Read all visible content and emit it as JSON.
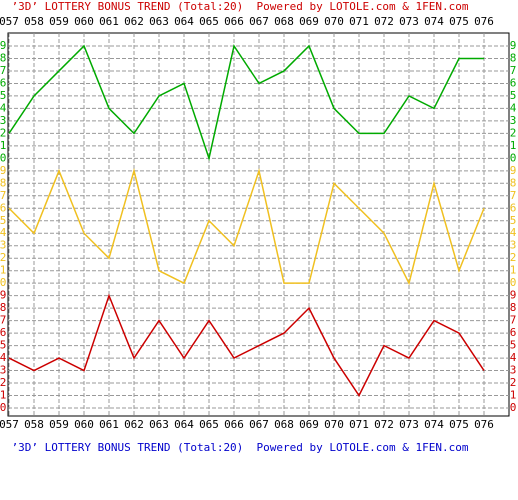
{
  "chart_data": {
    "type": "line",
    "title": "’3D’ LOTTERY BONUS TREND (Total:20)  Powered by LOTOLE.com & 1FEN.com",
    "categories": [
      "057",
      "058",
      "059",
      "060",
      "061",
      "062",
      "063",
      "064",
      "065",
      "066",
      "067",
      "068",
      "069",
      "070",
      "071",
      "072",
      "073",
      "074",
      "075",
      "076"
    ],
    "ylim": [
      0,
      9
    ],
    "yticks": [
      0,
      1,
      2,
      3,
      4,
      5,
      6,
      7,
      8,
      9
    ],
    "grid": true,
    "series": [
      {
        "color": "#00aa00",
        "values": [
          2,
          5,
          7,
          9,
          4,
          2,
          5,
          6,
          0,
          9,
          6,
          7,
          9,
          4,
          2,
          2,
          5,
          4,
          8,
          8
        ]
      },
      {
        "color": "#f0c020",
        "values": [
          6,
          4,
          9,
          4,
          2,
          9,
          1,
          0,
          5,
          3,
          9,
          0,
          0,
          8,
          6,
          4,
          0,
          8,
          1,
          6
        ]
      },
      {
        "color": "#cc0000",
        "values": [
          4,
          3,
          4,
          3,
          9,
          4,
          7,
          4,
          7,
          4,
          5,
          6,
          8,
          4,
          1,
          5,
          4,
          7,
          6,
          3
        ]
      }
    ]
  }
}
